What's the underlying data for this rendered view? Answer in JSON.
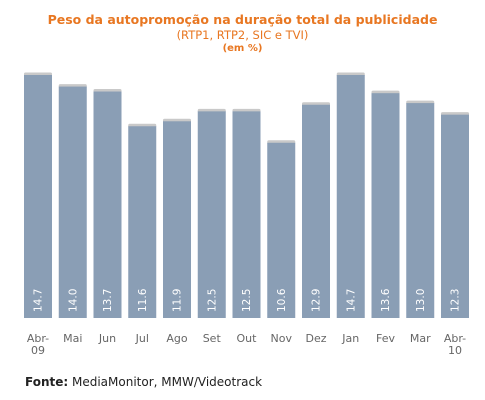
{
  "chart_data": {
    "type": "bar",
    "title": "Peso da autopromoção na duração total da publicidade",
    "subtitle": "(RTP1, RTP2, SIC e TVI)",
    "unit": "(em %)",
    "categories": [
      "Abr-\n09",
      "Mai",
      "Jun",
      "Jul",
      "Ago",
      "Set",
      "Out",
      "Nov",
      "Dez",
      "Jan",
      "Fev",
      "Mar",
      "Abr-\n10"
    ],
    "values": [
      14.7,
      14.0,
      13.7,
      11.6,
      11.9,
      12.5,
      12.5,
      10.6,
      12.9,
      14.7,
      13.6,
      13.0,
      12.3
    ],
    "value_labels": [
      "14.7",
      "14.0",
      "13.7",
      "11.6",
      "11.9",
      "12.5",
      "12.5",
      "10.6",
      "12.9",
      "14.7",
      "13.6",
      "13.0",
      "12.3"
    ],
    "bar_color": "#8a9eb5",
    "grid": false
  },
  "source": {
    "label": "Fonte:",
    "text": " MediaMonitor, MMW/Videotrack"
  }
}
